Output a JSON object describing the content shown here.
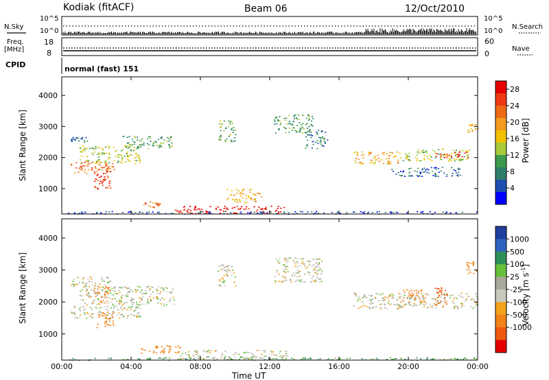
{
  "header": {
    "station": "Kodiak (fitACF)",
    "beam": "Beam 06",
    "date": "12/Oct/2010"
  },
  "top_panels": {
    "nsky_label": "N.Sky",
    "nsearch_label": "N.Search",
    "scale_top": "10^5",
    "scale_bottom": "10^0",
    "freq_label_line1": "Freq.",
    "freq_label_line2": "[MHz]",
    "freq_ticks": [
      "18",
      "8"
    ],
    "nave_label": "Nave",
    "nave_ticks": [
      "60",
      "0"
    ],
    "cpid_label": "CPID",
    "cpid_value": "normal (fast) 151"
  },
  "colors": {
    "power_scale": [
      "#0000ff",
      "#1f4fb0",
      "#2e7d6b",
      "#3d9a4d",
      "#a7c93a",
      "#f2c200",
      "#f39a1f",
      "#f06a16",
      "#ee3a14",
      "#e40000"
    ],
    "velocity_scale": [
      "#1f3f9f",
      "#2f63bf",
      "#2f8f5a",
      "#66c03a",
      "#a8a89b",
      "#c9c9bd",
      "#f2a21c",
      "#f28118",
      "#ef5a12",
      "#e40000"
    ]
  },
  "chart_data": [
    {
      "type": "heatmap",
      "title": "Power",
      "xlabel": "Time UT",
      "ylabel": "Slant Range [km]",
      "x_ticks": [
        "00:00",
        "04:00",
        "08:00",
        "12:00",
        "16:00",
        "20:00",
        "00:00"
      ],
      "y_ticks": [
        1000,
        2000,
        3000,
        4000
      ],
      "xlim_hours": [
        0,
        24
      ],
      "ylim_km": [
        180,
        4600
      ],
      "colorbar_label": "Power [dB]",
      "colorbar_ticks": [
        "28",
        "24",
        "20",
        "16",
        "12",
        "8",
        "4"
      ],
      "colorbar_range": [
        0,
        30
      ],
      "regions": [
        {
          "t0": 0.5,
          "t1": 3.0,
          "r0": 1500,
          "r1": 1900,
          "level": 22
        },
        {
          "t0": 1.0,
          "t1": 4.5,
          "r0": 1800,
          "r1": 2400,
          "level": 14
        },
        {
          "t0": 3.5,
          "t1": 6.5,
          "r0": 2300,
          "r1": 2700,
          "level": 10
        },
        {
          "t0": 0.5,
          "t1": 1.5,
          "r0": 2500,
          "r1": 2700,
          "level": 6
        },
        {
          "t0": 1.8,
          "t1": 2.8,
          "r0": 1000,
          "r1": 1700,
          "level": 26
        },
        {
          "t0": 4.7,
          "t1": 5.7,
          "r0": 400,
          "r1": 600,
          "level": 24
        },
        {
          "t0": 6.5,
          "t1": 12.8,
          "r0": 200,
          "r1": 450,
          "level": 28
        },
        {
          "t0": 9.5,
          "t1": 11.5,
          "r0": 550,
          "r1": 1000,
          "level": 18
        },
        {
          "t0": 9.0,
          "t1": 10.0,
          "r0": 2500,
          "r1": 3200,
          "level": 12
        },
        {
          "t0": 12.2,
          "t1": 14.5,
          "r0": 2800,
          "r1": 3400,
          "level": 10
        },
        {
          "t0": 14.0,
          "t1": 15.3,
          "r0": 2300,
          "r1": 2900,
          "level": 8
        },
        {
          "t0": 16.8,
          "t1": 19.5,
          "r0": 1800,
          "r1": 2200,
          "level": 18
        },
        {
          "t0": 19.5,
          "t1": 23.5,
          "r0": 1900,
          "r1": 2300,
          "level": 14
        },
        {
          "t0": 21.5,
          "t1": 23.5,
          "r0": 2000,
          "r1": 2200,
          "level": 26
        },
        {
          "t0": 19.0,
          "t1": 23.0,
          "r0": 1400,
          "r1": 1700,
          "level": 6
        },
        {
          "t0": 23.3,
          "t1": 24.0,
          "r0": 2800,
          "r1": 3100,
          "level": 18
        },
        {
          "t0": 0.3,
          "t1": 24.0,
          "r0": 190,
          "r1": 280,
          "level": 4
        }
      ]
    },
    {
      "type": "heatmap",
      "title": "Velocity",
      "xlabel": "Time UT",
      "ylabel": "Slant Range [km]",
      "x_ticks": [
        "00:00",
        "04:00",
        "08:00",
        "12:00",
        "16:00",
        "20:00",
        "00:00"
      ],
      "y_ticks": [
        1000,
        2000,
        3000,
        4000
      ],
      "xlim_hours": [
        0,
        24
      ],
      "ylim_km": [
        180,
        4600
      ],
      "colorbar_label": "Velocity [m s^-1]",
      "colorbar_ticks": [
        "1000",
        "500",
        "100",
        "25",
        "-25",
        "-100",
        "-500",
        "-1000"
      ],
      "regions": [
        {
          "t0": 0.5,
          "t1": 4.5,
          "r0": 1500,
          "r1": 1900,
          "vel": 0
        },
        {
          "t0": 1.0,
          "t1": 6.5,
          "r0": 1900,
          "r1": 2500,
          "vel": 0
        },
        {
          "t0": 0.5,
          "t1": 2.8,
          "r0": 2500,
          "r1": 2800,
          "vel": 0
        },
        {
          "t0": 1.8,
          "t1": 2.7,
          "r0": 2000,
          "r1": 2500,
          "vel": -300
        },
        {
          "t0": 2.0,
          "t1": 3.0,
          "r0": 1200,
          "r1": 1700,
          "vel": -150
        },
        {
          "t0": 4.5,
          "t1": 6.8,
          "r0": 400,
          "r1": 650,
          "vel": -120
        },
        {
          "t0": 6.8,
          "t1": 13.0,
          "r0": 220,
          "r1": 500,
          "vel": 0
        },
        {
          "t0": 9.0,
          "t1": 10.0,
          "r0": 2500,
          "r1": 3200,
          "vel": 0
        },
        {
          "t0": 12.2,
          "t1": 15.0,
          "r0": 2600,
          "r1": 3400,
          "vel": 0
        },
        {
          "t0": 16.8,
          "t1": 24.0,
          "r0": 1800,
          "r1": 2300,
          "vel": 0
        },
        {
          "t0": 19.5,
          "t1": 21.0,
          "r0": 2000,
          "r1": 2400,
          "vel": -300
        },
        {
          "t0": 21.5,
          "t1": 22.2,
          "r0": 1900,
          "r1": 2500,
          "vel": -600
        },
        {
          "t0": 23.3,
          "t1": 24.0,
          "r0": 2900,
          "r1": 3300,
          "vel": -200
        },
        {
          "t0": 0.3,
          "t1": 24.0,
          "r0": 190,
          "r1": 280,
          "vel": 60
        }
      ]
    }
  ]
}
